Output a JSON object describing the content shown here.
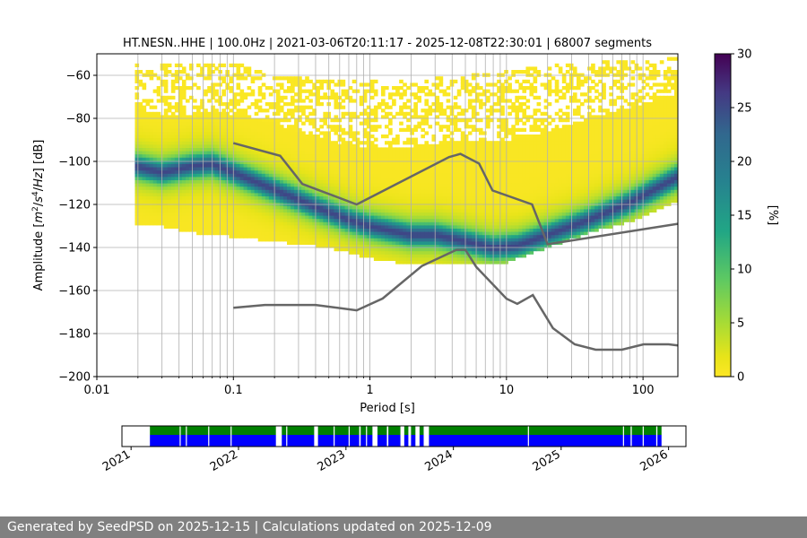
{
  "chart_data": [
    {
      "type": "heatmap",
      "title": "HT.NESN..HHE | 100.0Hz | 2021-03-06T20:11:17 - 2025-12-08T22:30:01 | 68007 segments",
      "xlabel": "Period [s]",
      "ylabel_parts": [
        "Amplitude [",
        "m",
        "2",
        "/",
        "s",
        "4",
        "/",
        "Hz",
        "] [dB]"
      ],
      "x_scale": "log",
      "xlim": [
        0.01,
        180
      ],
      "ylim": [
        -200,
        -50
      ],
      "x_ticks": [
        {
          "value": 0.01,
          "label": "0.01"
        },
        {
          "value": 0.1,
          "label": "0.1"
        },
        {
          "value": 1,
          "label": "1"
        },
        {
          "value": 10,
          "label": "10"
        },
        {
          "value": 100,
          "label": "100"
        }
      ],
      "y_ticks": [
        {
          "value": -60,
          "label": "−60"
        },
        {
          "value": -80,
          "label": "−80"
        },
        {
          "value": -100,
          "label": "−100"
        },
        {
          "value": -120,
          "label": "−120"
        },
        {
          "value": -140,
          "label": "−140"
        },
        {
          "value": -160,
          "label": "−160"
        },
        {
          "value": -180,
          "label": "−180"
        },
        {
          "value": -200,
          "label": "−200"
        }
      ],
      "grid": true,
      "colormap": "viridis",
      "colorbar": {
        "label": "[%]",
        "range": [
          0,
          30
        ],
        "ticks": [
          {
            "value": 0,
            "label": "0"
          },
          {
            "value": 5,
            "label": "5"
          },
          {
            "value": 10,
            "label": "10"
          },
          {
            "value": 15,
            "label": "15"
          },
          {
            "value": 20,
            "label": "20"
          },
          {
            "value": 25,
            "label": "25"
          },
          {
            "value": 30,
            "label": "30"
          }
        ]
      },
      "density": {
        "period_min": 0.019,
        "mode_curve": [
          [
            0.019,
            -102
          ],
          [
            0.03,
            -105
          ],
          [
            0.05,
            -102
          ],
          [
            0.07,
            -101
          ],
          [
            0.1,
            -105
          ],
          [
            0.2,
            -113
          ],
          [
            0.4,
            -121
          ],
          [
            0.7,
            -127
          ],
          [
            1,
            -130
          ],
          [
            2,
            -134
          ],
          [
            3,
            -134
          ],
          [
            5,
            -137
          ],
          [
            8,
            -140
          ],
          [
            12,
            -139
          ],
          [
            20,
            -134
          ],
          [
            40,
            -127
          ],
          [
            80,
            -119
          ],
          [
            180,
            -107
          ]
        ],
        "spread_upper": [
          [
            0.019,
            -75
          ],
          [
            0.03,
            -78
          ],
          [
            0.05,
            -80
          ],
          [
            0.07,
            -76
          ],
          [
            0.1,
            -78
          ],
          [
            0.2,
            -82
          ],
          [
            0.3,
            -86
          ],
          [
            0.5,
            -90
          ],
          [
            0.7,
            -93
          ],
          [
            1,
            -93
          ],
          [
            2,
            -93
          ],
          [
            3,
            -92
          ],
          [
            5,
            -90
          ],
          [
            10,
            -90
          ],
          [
            15,
            -89
          ],
          [
            20,
            -86
          ],
          [
            40,
            -80
          ],
          [
            80,
            -75
          ],
          [
            180,
            -68
          ]
        ],
        "spread_lower": [
          [
            0.019,
            -130
          ],
          [
            0.03,
            -130
          ],
          [
            0.05,
            -133
          ],
          [
            0.07,
            -134
          ],
          [
            0.1,
            -135
          ],
          [
            0.2,
            -137
          ],
          [
            0.5,
            -140
          ],
          [
            1,
            -145
          ],
          [
            2,
            -148
          ],
          [
            3,
            -148
          ],
          [
            5,
            -147
          ],
          [
            10,
            -147
          ],
          [
            20,
            -140
          ],
          [
            40,
            -133
          ],
          [
            80,
            -128
          ],
          [
            180,
            -118
          ]
        ],
        "noise_upper": [
          [
            0.1,
            -54
          ],
          [
            0.2,
            -60
          ],
          [
            0.5,
            -62
          ],
          [
            1,
            -62
          ],
          [
            2,
            -62
          ],
          [
            5,
            -60
          ],
          [
            10,
            -58
          ],
          [
            20,
            -55
          ],
          [
            40,
            -54
          ],
          [
            180,
            -52
          ]
        ]
      },
      "nhnm": [
        [
          0.1,
          -91.5
        ],
        [
          0.22,
          -97.4
        ],
        [
          0.32,
          -110.5
        ],
        [
          0.8,
          -120
        ],
        [
          3.8,
          -98
        ],
        [
          4.6,
          -96.5
        ],
        [
          6.3,
          -101
        ],
        [
          7.9,
          -113.5
        ],
        [
          15.4,
          -120
        ],
        [
          20,
          -138.5
        ],
        [
          180,
          -129
        ]
      ],
      "nlnm": [
        [
          0.1,
          -168
        ],
        [
          0.17,
          -166.7
        ],
        [
          0.4,
          -166.7
        ],
        [
          0.8,
          -169.2
        ],
        [
          1.24,
          -163.7
        ],
        [
          2.4,
          -148.6
        ],
        [
          4.3,
          -141.1
        ],
        [
          5,
          -141.1
        ],
        [
          6,
          -149
        ],
        [
          10,
          -163.8
        ],
        [
          12,
          -166.2
        ],
        [
          15.6,
          -162.1
        ],
        [
          21.9,
          -177.5
        ],
        [
          31.6,
          -185
        ],
        [
          45,
          -187.5
        ],
        [
          70,
          -187.5
        ],
        [
          101,
          -185
        ],
        [
          154,
          -185
        ],
        [
          180,
          -185.5
        ]
      ]
    },
    {
      "type": "timeline",
      "xlim": [
        "2020-12-01",
        "2026-03-01"
      ],
      "x_ticks": [
        "2021",
        "2022",
        "2023",
        "2024",
        "2025",
        "2026"
      ],
      "colors": {
        "availability": "#0000ff",
        "processed": "#008000"
      },
      "coverage_start": "2021-03-06",
      "coverage_end": "2025-12-08",
      "gaps": [
        [
          "2021-06-15",
          "2021-06-17"
        ],
        [
          "2021-07-06",
          "2021-07-08"
        ],
        [
          "2021-09-20",
          "2021-09-22"
        ],
        [
          "2021-12-05",
          "2021-12-08"
        ],
        [
          "2022-05-08",
          "2022-05-28"
        ],
        [
          "2022-06-12",
          "2022-06-15"
        ],
        [
          "2022-09-15",
          "2022-09-28"
        ],
        [
          "2022-11-20",
          "2022-11-22"
        ],
        [
          "2023-01-10",
          "2023-01-12"
        ],
        [
          "2023-02-15",
          "2023-02-20"
        ],
        [
          "2023-03-10",
          "2023-03-13"
        ],
        [
          "2023-04-01",
          "2023-04-18"
        ],
        [
          "2023-05-20",
          "2023-05-25"
        ],
        [
          "2023-07-05",
          "2023-07-18"
        ],
        [
          "2023-08-01",
          "2023-08-10"
        ],
        [
          "2023-08-25",
          "2023-09-08"
        ],
        [
          "2023-09-22",
          "2023-10-10"
        ],
        [
          "2024-09-10",
          "2024-09-13"
        ],
        [
          "2025-07-30",
          "2025-08-01"
        ],
        [
          "2025-08-25",
          "2025-08-29"
        ],
        [
          "2025-10-05",
          "2025-10-08"
        ],
        [
          "2025-11-20",
          "2025-11-24"
        ]
      ]
    }
  ],
  "footer": {
    "text": "Generated by SeedPSD on 2025-12-15 | Calculations updated on 2025-12-09"
  }
}
